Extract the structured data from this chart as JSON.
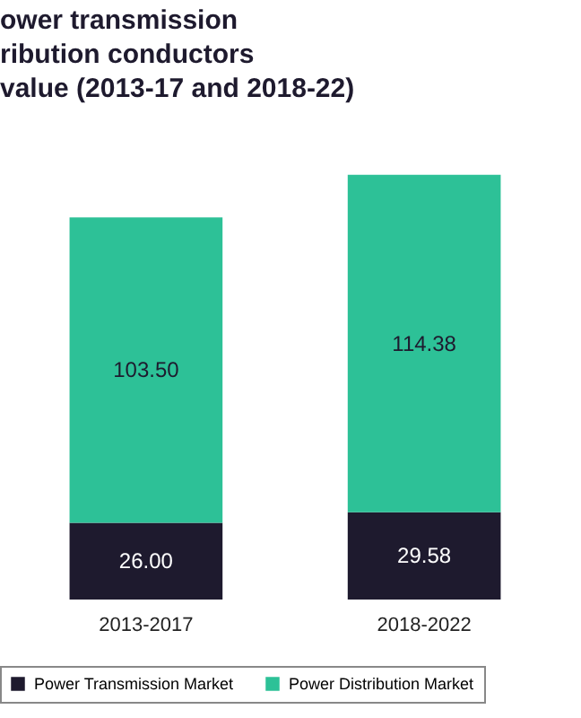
{
  "chart_data": {
    "type": "bar",
    "title": "ower transmission\nribution conductors\nvalue (2013-17 and 2018-22)",
    "categories": [
      "2013-2017",
      "2018-2022"
    ],
    "stacked": true,
    "legend": "bottom",
    "series": [
      {
        "name": "Power Transmission Market",
        "color": "#1e1a2e",
        "values": [
          26.0,
          29.58
        ],
        "value_labels": [
          "26.00",
          "29.58"
        ]
      },
      {
        "name": "Power Distribution Market",
        "color": "#2dc197",
        "values": [
          103.5,
          114.38
        ],
        "value_labels": [
          "103.50",
          "114.38"
        ]
      }
    ]
  }
}
